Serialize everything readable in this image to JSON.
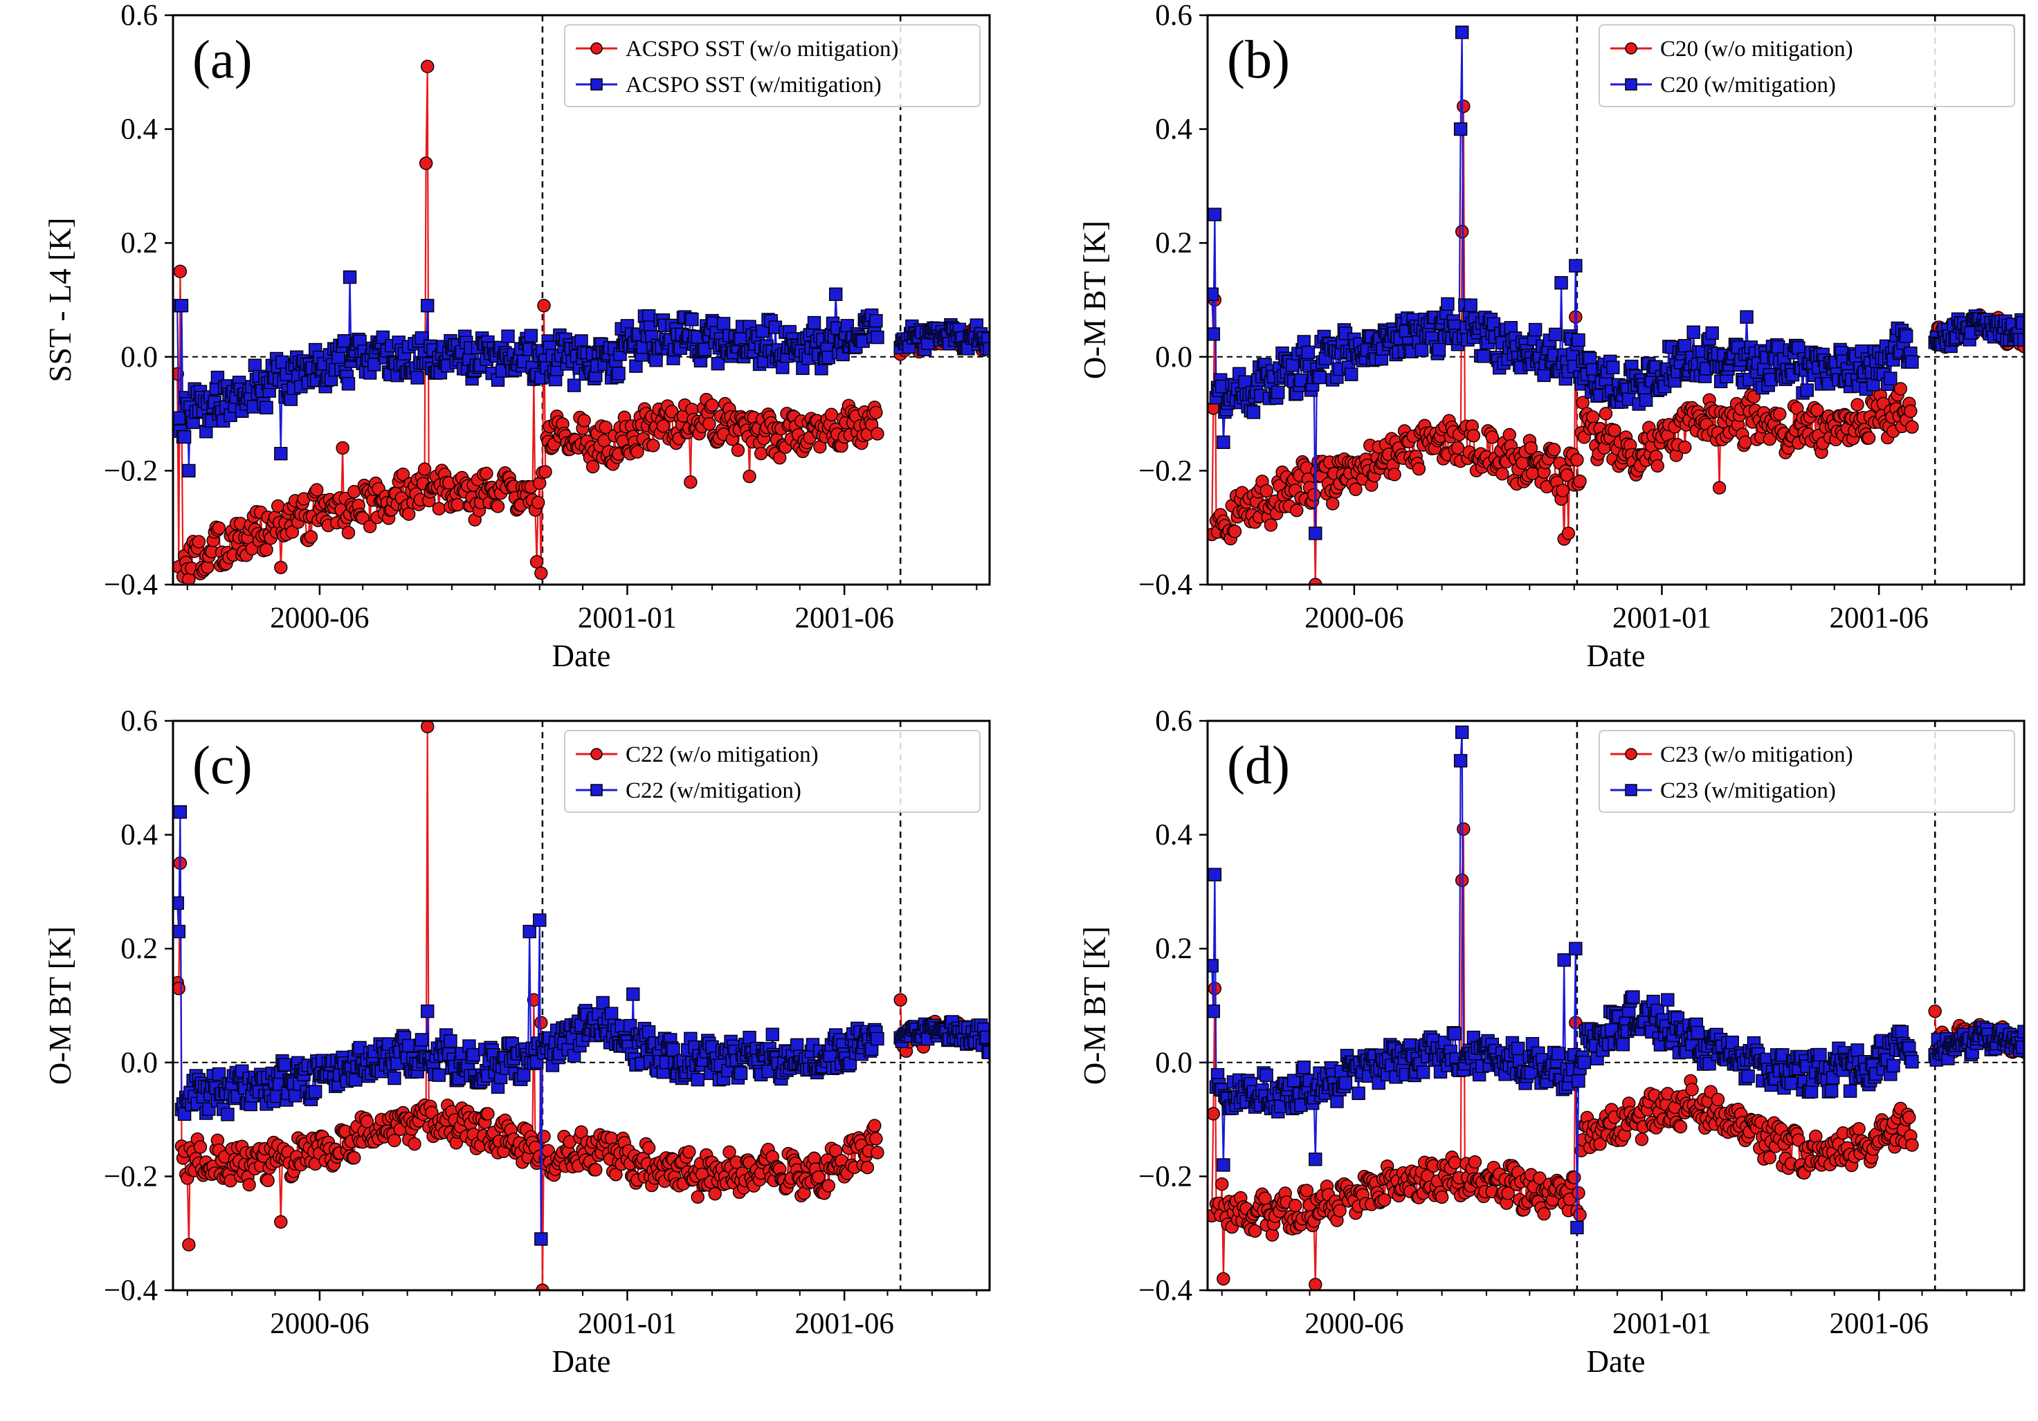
{
  "figure": {
    "colors": {
      "without": "#e8191b",
      "with": "#1a1ad6",
      "marker_edge": "#000000",
      "ref_line": "#000000"
    }
  },
  "chart_data": [
    {
      "panel": "a",
      "type": "scatter",
      "panel_label": "(a)",
      "xlabel": "Date",
      "ylabel": "SST - L4 [K]",
      "xlim": [
        "2000-02-20",
        "2001-09-10"
      ],
      "ylim": [
        -0.4,
        0.6
      ],
      "xticks": [
        "2000-06",
        "2001-01",
        "2001-06"
      ],
      "yticks": [
        "0.6",
        "0.4",
        "0.2",
        "0.0",
        "−0.2",
        "−0.4"
      ],
      "vlines": [
        "2000-11-03",
        "2001-07-10"
      ],
      "hline": 0.0,
      "legend_position": "upper right",
      "series": [
        {
          "name": "ACSPO SST (w/o mitigation)",
          "marker": "circle",
          "segments": [
            {
              "start": "2000-02-23",
              "end": "2000-11-05",
              "base": [
                -0.37,
                -0.32,
                -0.28,
                -0.26,
                -0.24,
                -0.24,
                -0.23
              ],
              "amp": 0.035,
              "spikes": [
                [
                  "2000-02-23",
                  -0.03
                ],
                [
                  "2000-02-25",
                  0.15
                ],
                [
                  "2000-02-26",
                  -0.11
                ],
                [
                  "2000-05-05",
                  -0.37
                ],
                [
                  "2000-06-17",
                  -0.16
                ],
                [
                  "2000-08-14",
                  0.34
                ],
                [
                  "2000-08-15",
                  0.51
                ],
                [
                  "2000-10-28",
                  -0.04
                ],
                [
                  "2000-10-30",
                  -0.36
                ],
                [
                  "2000-11-02",
                  -0.38
                ],
                [
                  "2000-11-04",
                  0.09
                ]
              ]
            },
            {
              "start": "2000-11-06",
              "end": "2001-06-24",
              "base": [
                -0.12,
                -0.16,
                -0.12,
                -0.11,
                -0.14,
                -0.13,
                -0.11
              ],
              "amp": 0.03,
              "spikes": [
                [
                  "2001-02-14",
                  -0.22
                ],
                [
                  "2001-03-27",
                  -0.21
                ]
              ]
            },
            {
              "start": "2001-07-10",
              "end": "2001-09-10",
              "base": [
                0.02,
                0.04,
                0.03
              ],
              "amp": 0.018,
              "spikes": []
            }
          ]
        },
        {
          "name": "ACSPO SST (w/mitigation)",
          "marker": "square",
          "segments": [
            {
              "start": "2000-02-23",
              "end": "2000-11-05",
              "base": [
                -0.1,
                -0.07,
                -0.03,
                0.0,
                0.0,
                0.0,
                0.0
              ],
              "amp": 0.035,
              "spikes": [
                [
                  "2000-02-23",
                  0.09
                ],
                [
                  "2000-02-26",
                  0.09
                ],
                [
                  "2000-03-02",
                  -0.2
                ],
                [
                  "2000-05-05",
                  -0.17
                ],
                [
                  "2000-06-22",
                  0.14
                ],
                [
                  "2000-08-15",
                  0.09
                ]
              ]
            },
            {
              "start": "2000-11-06",
              "end": "2001-06-24",
              "base": [
                0.0,
                -0.01,
                0.04,
                0.03,
                0.02,
                0.02,
                0.05
              ],
              "amp": 0.035,
              "spikes": [
                [
                  "2001-05-26",
                  0.11
                ]
              ]
            },
            {
              "start": "2001-07-10",
              "end": "2001-09-10",
              "base": [
                0.03,
                0.04,
                0.03
              ],
              "amp": 0.018,
              "spikes": []
            }
          ]
        }
      ]
    },
    {
      "panel": "b",
      "type": "scatter",
      "panel_label": "(b)",
      "xlabel": "Date",
      "ylabel": "O-M BT [K]",
      "xlim": [
        "2000-02-20",
        "2001-09-10"
      ],
      "ylim": [
        -0.4,
        0.6
      ],
      "xticks": [
        "2000-06",
        "2001-01",
        "2001-06"
      ],
      "yticks": [
        "0.6",
        "0.4",
        "0.2",
        "0.0",
        "−0.2",
        "−0.4"
      ],
      "vlines": [
        "2000-11-03",
        "2001-07-10"
      ],
      "hline": 0.0,
      "legend_position": "upper right",
      "series": [
        {
          "name": "C20 (w/o mitigation)",
          "marker": "circle",
          "segments": [
            {
              "start": "2000-02-23",
              "end": "2000-11-05",
              "base": [
                -0.29,
                -0.25,
                -0.21,
                -0.17,
                -0.15,
                -0.19,
                -0.21
              ],
              "amp": 0.035,
              "spikes": [
                [
                  "2000-02-25",
                  0.1
                ],
                [
                  "2000-02-24",
                  -0.09
                ],
                [
                  "2000-05-05",
                  -0.4
                ],
                [
                  "2000-08-15",
                  0.22
                ],
                [
                  "2000-08-16",
                  0.44
                ],
                [
                  "2000-10-25",
                  -0.32
                ],
                [
                  "2000-10-28",
                  -0.31
                ],
                [
                  "2000-11-02",
                  0.07
                ]
              ]
            },
            {
              "start": "2000-11-06",
              "end": "2001-06-24",
              "base": [
                -0.12,
                -0.17,
                -0.12,
                -0.11,
                -0.13,
                -0.12,
                -0.09
              ],
              "amp": 0.035,
              "spikes": [
                [
                  "2001-02-10",
                  -0.23
                ]
              ]
            },
            {
              "start": "2001-07-10",
              "end": "2001-09-10",
              "base": [
                0.03,
                0.06,
                0.03
              ],
              "amp": 0.018,
              "spikes": []
            }
          ]
        },
        {
          "name": "C20 (w/mitigation)",
          "marker": "square",
          "segments": [
            {
              "start": "2000-02-23",
              "end": "2000-11-05",
              "base": [
                -0.08,
                -0.04,
                0.0,
                0.03,
                0.06,
                0.01,
                0.0
              ],
              "amp": 0.035,
              "spikes": [
                [
                  "2000-02-23",
                  0.11
                ],
                [
                  "2000-02-25",
                  0.25
                ],
                [
                  "2000-02-24",
                  0.04
                ],
                [
                  "2000-03-02",
                  -0.15
                ],
                [
                  "2000-05-05",
                  -0.31
                ],
                [
                  "2000-08-14",
                  0.4
                ],
                [
                  "2000-08-15",
                  0.57
                ],
                [
                  "2000-10-23",
                  0.13
                ],
                [
                  "2000-11-02",
                  0.16
                ]
              ]
            },
            {
              "start": "2000-11-06",
              "end": "2001-06-24",
              "base": [
                -0.03,
                -0.06,
                0.0,
                -0.01,
                -0.02,
                -0.03,
                0.02
              ],
              "amp": 0.035,
              "spikes": [
                [
                  "2001-03-01",
                  0.07
                ]
              ]
            },
            {
              "start": "2001-07-10",
              "end": "2001-09-10",
              "base": [
                0.03,
                0.06,
                0.04
              ],
              "amp": 0.018,
              "spikes": []
            }
          ]
        }
      ]
    },
    {
      "panel": "c",
      "type": "scatter",
      "panel_label": "(c)",
      "xlabel": "Date",
      "ylabel": "O-M BT [K]",
      "xlim": [
        "2000-02-20",
        "2001-09-10"
      ],
      "ylim": [
        -0.4,
        0.6
      ],
      "xticks": [
        "2000-06",
        "2001-01",
        "2001-06"
      ],
      "yticks": [
        "0.6",
        "0.4",
        "0.2",
        "0.0",
        "−0.2",
        "−0.4"
      ],
      "vlines": [
        "2000-11-03",
        "2001-07-10"
      ],
      "hline": 0.0,
      "legend_position": "upper right",
      "series": [
        {
          "name": "C22 (w/o mitigation)",
          "marker": "circle",
          "segments": [
            {
              "start": "2000-02-23",
              "end": "2000-11-05",
              "base": [
                -0.17,
                -0.18,
                -0.16,
                -0.13,
                -0.1,
                -0.12,
                -0.16
              ],
              "amp": 0.03,
              "spikes": [
                [
                  "2000-02-23",
                  0.14
                ],
                [
                  "2000-02-24",
                  0.13
                ],
                [
                  "2000-02-25",
                  0.35
                ],
                [
                  "2000-03-02",
                  -0.32
                ],
                [
                  "2000-05-05",
                  -0.28
                ],
                [
                  "2000-08-15",
                  0.59
                ],
                [
                  "2000-10-28",
                  0.11
                ],
                [
                  "2000-11-02",
                  0.07
                ],
                [
                  "2000-11-03",
                  -0.4
                ]
              ]
            },
            {
              "start": "2000-11-06",
              "end": "2001-06-24",
              "base": [
                -0.17,
                -0.15,
                -0.19,
                -0.2,
                -0.19,
                -0.2,
                -0.14
              ],
              "amp": 0.03,
              "spikes": []
            },
            {
              "start": "2001-07-10",
              "end": "2001-09-10",
              "base": [
                0.04,
                0.06,
                0.04
              ],
              "amp": 0.018,
              "spikes": [
                [
                  "2001-07-10",
                  0.11
                ]
              ]
            }
          ]
        },
        {
          "name": "C22 (w/mitigation)",
          "marker": "square",
          "segments": [
            {
              "start": "2000-02-23",
              "end": "2000-11-05",
              "base": [
                -0.06,
                -0.05,
                -0.03,
                0.0,
                0.02,
                -0.01,
                0.02
              ],
              "amp": 0.03,
              "spikes": [
                [
                  "2000-02-23",
                  0.28
                ],
                [
                  "2000-02-24",
                  0.23
                ],
                [
                  "2000-02-25",
                  0.44
                ],
                [
                  "2000-08-15",
                  0.09
                ],
                [
                  "2000-10-25",
                  0.23
                ],
                [
                  "2000-11-01",
                  0.25
                ],
                [
                  "2000-11-02",
                  -0.31
                ]
              ]
            },
            {
              "start": "2000-11-06",
              "end": "2001-06-24",
              "base": [
                0.03,
                0.07,
                0.01,
                0.0,
                0.01,
                0.0,
                0.05
              ],
              "amp": 0.03,
              "spikes": [
                [
                  "2001-01-05",
                  0.12
                ]
              ]
            },
            {
              "start": "2001-07-10",
              "end": "2001-09-10",
              "base": [
                0.05,
                0.06,
                0.04
              ],
              "amp": 0.018,
              "spikes": []
            }
          ]
        }
      ]
    },
    {
      "panel": "d",
      "type": "scatter",
      "panel_label": "(d)",
      "xlabel": "Date",
      "ylabel": "O-M BT [K]",
      "xlim": [
        "2000-02-20",
        "2001-09-10"
      ],
      "ylim": [
        -0.4,
        0.6
      ],
      "xticks": [
        "2000-06",
        "2001-01",
        "2001-06"
      ],
      "yticks": [
        "0.6",
        "0.4",
        "0.2",
        "0.0",
        "−0.2",
        "−0.4"
      ],
      "vlines": [
        "2000-11-03",
        "2001-07-10"
      ],
      "hline": 0.0,
      "legend_position": "upper right",
      "series": [
        {
          "name": "C23 (w/o mitigation)",
          "marker": "circle",
          "segments": [
            {
              "start": "2000-02-23",
              "end": "2000-11-05",
              "base": [
                -0.25,
                -0.27,
                -0.25,
                -0.21,
                -0.2,
                -0.22,
                -0.24
              ],
              "amp": 0.03,
              "spikes": [
                [
                  "2000-02-24",
                  -0.09
                ],
                [
                  "2000-02-25",
                  0.13
                ],
                [
                  "2000-03-02",
                  -0.38
                ],
                [
                  "2000-05-05",
                  -0.39
                ],
                [
                  "2000-08-15",
                  0.32
                ],
                [
                  "2000-08-16",
                  0.41
                ],
                [
                  "2000-10-28",
                  -0.26
                ],
                [
                  "2000-11-02",
                  0.07
                ]
              ]
            },
            {
              "start": "2000-11-06",
              "end": "2001-06-24",
              "base": [
                -0.14,
                -0.1,
                -0.07,
                -0.12,
                -0.16,
                -0.15,
                -0.11
              ],
              "amp": 0.03,
              "spikes": []
            },
            {
              "start": "2001-07-10",
              "end": "2001-09-10",
              "base": [
                0.03,
                0.05,
                0.03
              ],
              "amp": 0.018,
              "spikes": [
                [
                  "2001-07-10",
                  0.09
                ]
              ]
            }
          ]
        },
        {
          "name": "C23 (w/mitigation)",
          "marker": "square",
          "segments": [
            {
              "start": "2000-02-23",
              "end": "2000-11-05",
              "base": [
                -0.05,
                -0.06,
                -0.03,
                0.0,
                0.02,
                0.0,
                -0.02
              ],
              "amp": 0.03,
              "spikes": [
                [
                  "2000-02-23",
                  0.17
                ],
                [
                  "2000-02-24",
                  0.09
                ],
                [
                  "2000-02-25",
                  0.33
                ],
                [
                  "2000-03-02",
                  -0.18
                ],
                [
                  "2000-05-05",
                  -0.17
                ],
                [
                  "2000-08-14",
                  0.53
                ],
                [
                  "2000-08-15",
                  0.58
                ],
                [
                  "2000-10-25",
                  0.18
                ],
                [
                  "2000-11-02",
                  0.2
                ],
                [
                  "2000-11-03",
                  -0.29
                ]
              ]
            },
            {
              "start": "2000-11-06",
              "end": "2001-06-24",
              "base": [
                0.02,
                0.08,
                0.04,
                0.0,
                -0.02,
                -0.01,
                0.03
              ],
              "amp": 0.03,
              "spikes": [
                [
                  "2001-01-05",
                  0.11
                ]
              ]
            },
            {
              "start": "2001-07-10",
              "end": "2001-09-10",
              "base": [
                0.02,
                0.04,
                0.03
              ],
              "amp": 0.018,
              "spikes": []
            }
          ]
        }
      ]
    }
  ]
}
